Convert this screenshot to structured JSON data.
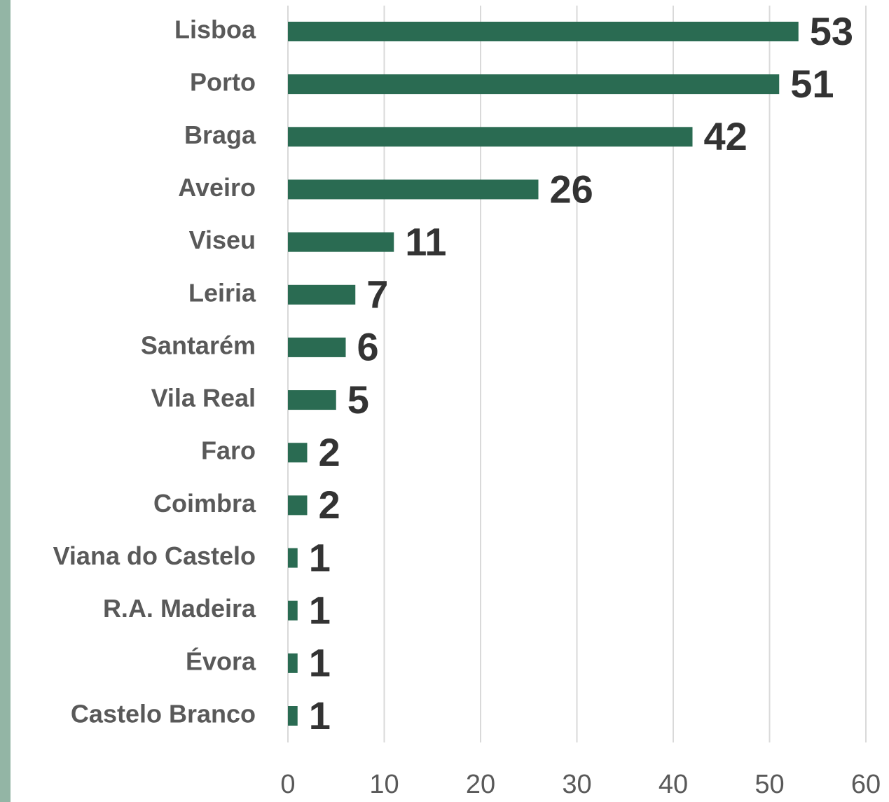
{
  "chart_data": {
    "type": "bar",
    "orientation": "horizontal",
    "categories": [
      "Lisboa",
      "Porto",
      "Braga",
      "Aveiro",
      "Viseu",
      "Leiria",
      "Santarém",
      "Vila Real",
      "Faro",
      "Coimbra",
      "Viana do Castelo",
      "R.A. Madeira",
      "Évora",
      "Castelo Branco"
    ],
    "values": [
      53,
      51,
      42,
      26,
      11,
      7,
      6,
      5,
      2,
      2,
      1,
      1,
      1,
      1
    ],
    "color": "#2a6b52",
    "xlim": [
      0,
      60
    ],
    "xticks": [
      0,
      10,
      20,
      30,
      40,
      50,
      60
    ],
    "grid": true
  }
}
